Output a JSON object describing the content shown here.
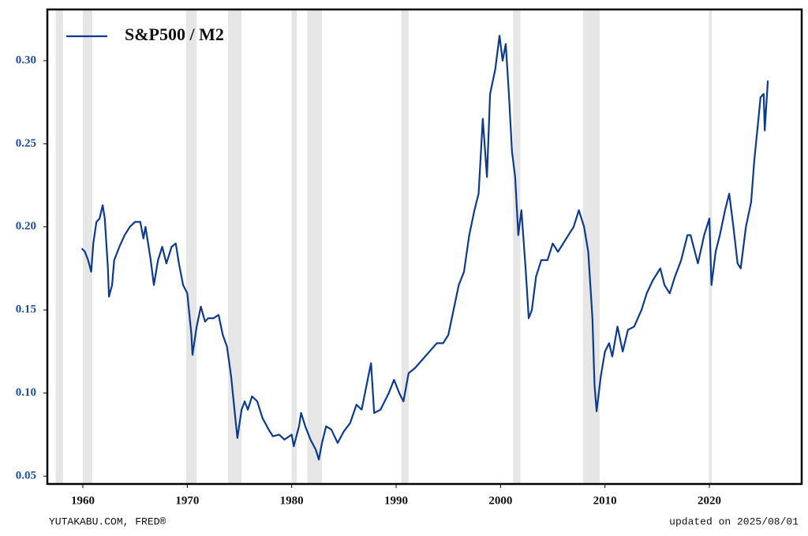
{
  "chart_data": {
    "type": "line",
    "source": "YUTAKABU.COM, FRED®",
    "updated": "updated on 2025/08/01",
    "xlim": [
      1956.6,
      2028.84
    ],
    "ylim": [
      0.0453,
      0.3308
    ],
    "xticks": [
      1960,
      1970,
      1980,
      1990,
      2000,
      2010,
      2020
    ],
    "yticks": [
      0.05,
      {
        "value": 0.1,
        "label": "0.10"
      },
      0.15,
      {
        "value": 0.2,
        "label": "0.20"
      },
      0.25,
      {
        "value": 0.3,
        "label": "0.30"
      }
    ],
    "legend": "upper left",
    "recession_color": "#e6e6e6",
    "recessions": [
      [
        1957.4,
        1958.1
      ],
      [
        1960.0,
        1960.9
      ],
      [
        1969.9,
        1970.9
      ],
      [
        1973.9,
        1975.2
      ],
      [
        1980.0,
        1980.5
      ],
      [
        1981.5,
        1982.9
      ],
      [
        1990.5,
        1991.2
      ],
      [
        2001.2,
        2001.9
      ],
      [
        2007.9,
        2009.5
      ],
      [
        2019.95,
        2020.25
      ]
    ],
    "x": [
      1959.9,
      1960.2,
      1960.5,
      1960.8,
      1961.0,
      1961.3,
      1961.6,
      1961.9,
      1962.1,
      1962.4,
      1962.5,
      1962.8,
      1963.0,
      1963.5,
      1964.0,
      1964.5,
      1965.0,
      1965.5,
      1965.8,
      1966.0,
      1966.5,
      1966.8,
      1967.2,
      1967.6,
      1968.0,
      1968.5,
      1968.9,
      1969.2,
      1969.6,
      1970.0,
      1970.4,
      1970.5,
      1970.9,
      1971.3,
      1971.7,
      1972.0,
      1972.5,
      1973.0,
      1973.4,
      1973.8,
      1974.2,
      1974.6,
      1974.8,
      1975.2,
      1975.5,
      1975.8,
      1976.2,
      1976.7,
      1977.2,
      1977.8,
      1978.2,
      1978.8,
      1979.3,
      1980.0,
      1980.2,
      1980.7,
      1980.9,
      1981.3,
      1981.8,
      1982.3,
      1982.6,
      1982.9,
      1983.3,
      1983.8,
      1984.4,
      1985.0,
      1985.6,
      1986.2,
      1986.7,
      1987.4,
      1987.6,
      1987.9,
      1988.5,
      1989.3,
      1989.8,
      1990.3,
      1990.7,
      1991.2,
      1991.8,
      1992.5,
      1993.2,
      1993.9,
      1994.5,
      1995.0,
      1995.5,
      1996.0,
      1996.5,
      1997.0,
      1997.5,
      1997.9,
      1998.3,
      1998.7,
      1999.0,
      1999.5,
      1999.9,
      2000.2,
      2000.5,
      2000.8,
      2001.1,
      2001.4,
      2001.7,
      2002.0,
      2002.4,
      2002.7,
      2003.0,
      2003.4,
      2003.9,
      2004.5,
      2005.0,
      2005.5,
      2006.0,
      2006.5,
      2007.0,
      2007.5,
      2008.0,
      2008.4,
      2008.8,
      2009.0,
      2009.2,
      2009.6,
      2010.0,
      2010.4,
      2010.7,
      2011.2,
      2011.7,
      2012.2,
      2012.8,
      2013.5,
      2014.0,
      2014.6,
      2015.3,
      2015.7,
      2016.2,
      2016.7,
      2017.3,
      2017.9,
      2018.2,
      2018.9,
      2019.5,
      2020.0,
      2020.2,
      2020.6,
      2021.0,
      2021.5,
      2021.9,
      2022.3,
      2022.7,
      2023.0,
      2023.5,
      2024.0,
      2024.3,
      2024.7,
      2024.9,
      2025.2,
      2025.3,
      2025.6
    ],
    "series": [
      {
        "name": "S&P500 / M2",
        "color": "#0d3b8c",
        "values": [
          0.187,
          0.185,
          0.18,
          0.173,
          0.19,
          0.203,
          0.205,
          0.213,
          0.205,
          0.175,
          0.158,
          0.165,
          0.18,
          0.188,
          0.195,
          0.2,
          0.203,
          0.203,
          0.193,
          0.2,
          0.18,
          0.165,
          0.18,
          0.188,
          0.178,
          0.188,
          0.19,
          0.178,
          0.165,
          0.16,
          0.135,
          0.123,
          0.14,
          0.152,
          0.143,
          0.145,
          0.145,
          0.147,
          0.135,
          0.128,
          0.11,
          0.085,
          0.073,
          0.09,
          0.095,
          0.09,
          0.098,
          0.095,
          0.085,
          0.078,
          0.074,
          0.075,
          0.072,
          0.075,
          0.068,
          0.08,
          0.088,
          0.08,
          0.072,
          0.066,
          0.06,
          0.07,
          0.08,
          0.078,
          0.07,
          0.077,
          0.082,
          0.093,
          0.09,
          0.112,
          0.118,
          0.088,
          0.09,
          0.1,
          0.108,
          0.1,
          0.095,
          0.112,
          0.115,
          0.12,
          0.125,
          0.13,
          0.13,
          0.135,
          0.15,
          0.165,
          0.173,
          0.195,
          0.21,
          0.22,
          0.265,
          0.23,
          0.28,
          0.295,
          0.315,
          0.3,
          0.31,
          0.28,
          0.245,
          0.23,
          0.195,
          0.21,
          0.175,
          0.145,
          0.15,
          0.17,
          0.18,
          0.18,
          0.19,
          0.185,
          0.19,
          0.195,
          0.2,
          0.21,
          0.2,
          0.185,
          0.145,
          0.105,
          0.089,
          0.11,
          0.125,
          0.13,
          0.122,
          0.14,
          0.125,
          0.138,
          0.14,
          0.15,
          0.16,
          0.168,
          0.175,
          0.165,
          0.16,
          0.17,
          0.18,
          0.195,
          0.195,
          0.178,
          0.195,
          0.205,
          0.165,
          0.185,
          0.195,
          0.21,
          0.22,
          0.2,
          0.178,
          0.175,
          0.2,
          0.215,
          0.24,
          0.265,
          0.278,
          0.28,
          0.258,
          0.288
        ]
      }
    ]
  }
}
